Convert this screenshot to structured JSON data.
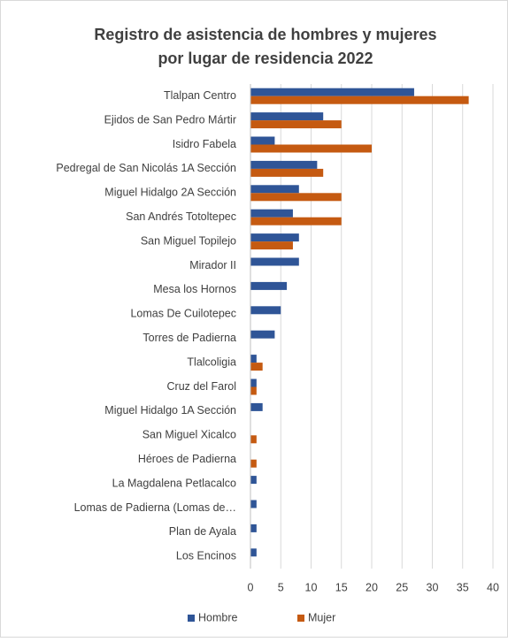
{
  "chart_data": {
    "type": "hbar",
    "title": [
      "Registro de asistencia de hombres y mujeres",
      "por lugar de residencia 2022"
    ],
    "categories": [
      "Tlalpan Centro",
      "Ejidos de San Pedro Mártir",
      "Isidro Fabela",
      "Pedregal de San Nicolás 1A Sección",
      "Miguel Hidalgo 2A Sección",
      "San Andrés Totoltepec",
      "San Miguel Topilejo",
      "Mirador II",
      "Mesa los Hornos",
      "Lomas De Cuilotepec",
      "Torres de Padierna",
      "Tlalcoligia",
      "Cruz del Farol",
      "Miguel Hidalgo 1A Sección",
      "San Miguel Xicalco",
      "Héroes de Padierna",
      "La Magdalena Petlacalco",
      "Lomas de Padierna (Lomas de…",
      "Plan de Ayala",
      "Los Encinos"
    ],
    "series": [
      {
        "name": "Hombre",
        "color": "#2f5597",
        "values": [
          27,
          12,
          4,
          11,
          8,
          7,
          8,
          8,
          6,
          5,
          4,
          1,
          1,
          2,
          0,
          0,
          1,
          1,
          1,
          1
        ]
      },
      {
        "name": "Mujer",
        "color": "#c55a11",
        "values": [
          36,
          15,
          20,
          12,
          15,
          15,
          7,
          0,
          0,
          0,
          0,
          2,
          1,
          0,
          1,
          1,
          0,
          0,
          0,
          0
        ]
      }
    ],
    "xlim": [
      0,
      40
    ],
    "xticks": [
      0,
      5,
      10,
      15,
      20,
      25,
      30,
      35,
      40
    ],
    "grid": true,
    "legend": "bottom"
  }
}
